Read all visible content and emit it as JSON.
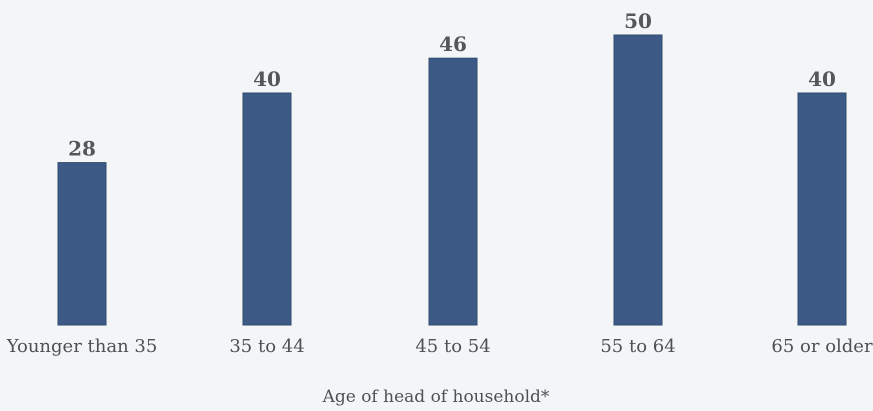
{
  "chart_data": {
    "type": "bar",
    "categories": [
      "Younger than 35",
      "35 to 44",
      "45 to 54",
      "55 to 64",
      "65 or older"
    ],
    "values": [
      28,
      40,
      46,
      50,
      40
    ],
    "data_labels": [
      "28",
      "40",
      "46",
      "50",
      "40"
    ],
    "title": "",
    "xlabel": "Age of head of household*",
    "ylabel": "",
    "ylim": [
      0,
      50
    ],
    "grid": false,
    "colors": {
      "bar": "#3c5a85",
      "bar_stroke": "#2f4a70",
      "background": "#f4f5f7",
      "text": "#55565a"
    }
  }
}
